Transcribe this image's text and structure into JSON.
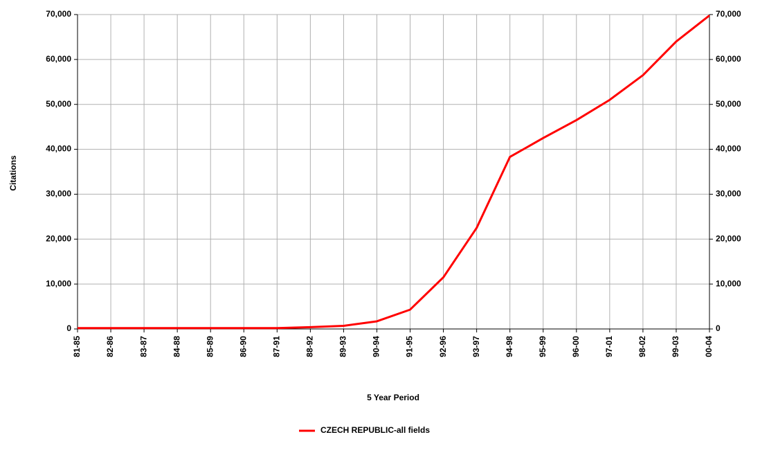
{
  "chart_data": {
    "type": "line",
    "xlabel": "5 Year Period",
    "ylabel": "Citations",
    "categories": [
      "81-85",
      "82-86",
      "83-87",
      "84-88",
      "85-89",
      "86-90",
      "87-91",
      "88-92",
      "89-93",
      "90-94",
      "91-95",
      "92-96",
      "93-97",
      "94-98",
      "95-99",
      "96-00",
      "97-01",
      "98-02",
      "99-03",
      "00-04"
    ],
    "series": [
      {
        "name": "CZECH REPUBLIC-all fields",
        "color": "#ff0000",
        "values": [
          200,
          200,
          200,
          200,
          200,
          200,
          200,
          400,
          700,
          1700,
          4300,
          11500,
          22500,
          38300,
          42500,
          46500,
          51000,
          56500,
          64000,
          69800
        ]
      }
    ],
    "ylim": [
      0,
      70000
    ],
    "yticks": [
      0,
      {
        "value": 10000,
        "label": "10,000"
      },
      {
        "value": 20000,
        "label": "20,000"
      },
      {
        "value": 30000,
        "label": "30,000"
      },
      {
        "value": 40000,
        "label": "40,000"
      },
      {
        "value": 50000,
        "label": "50,000"
      },
      {
        "value": 60000,
        "label": "60,000"
      },
      {
        "value": 70000,
        "label": "70,000"
      }
    ],
    "y2lim": [
      0,
      70000
    ],
    "y2ticks": [
      0,
      {
        "value": 10000,
        "label": "10,000"
      },
      {
        "value": 20000,
        "label": "20,000"
      },
      {
        "value": 30000,
        "label": "30,000"
      },
      {
        "value": 40000,
        "label": "40,000"
      },
      {
        "value": 50000,
        "label": "50,000"
      },
      {
        "value": 60000,
        "label": "60,000"
      },
      {
        "value": 70000,
        "label": "70,000"
      }
    ],
    "grid": true,
    "legend": "bottom"
  }
}
